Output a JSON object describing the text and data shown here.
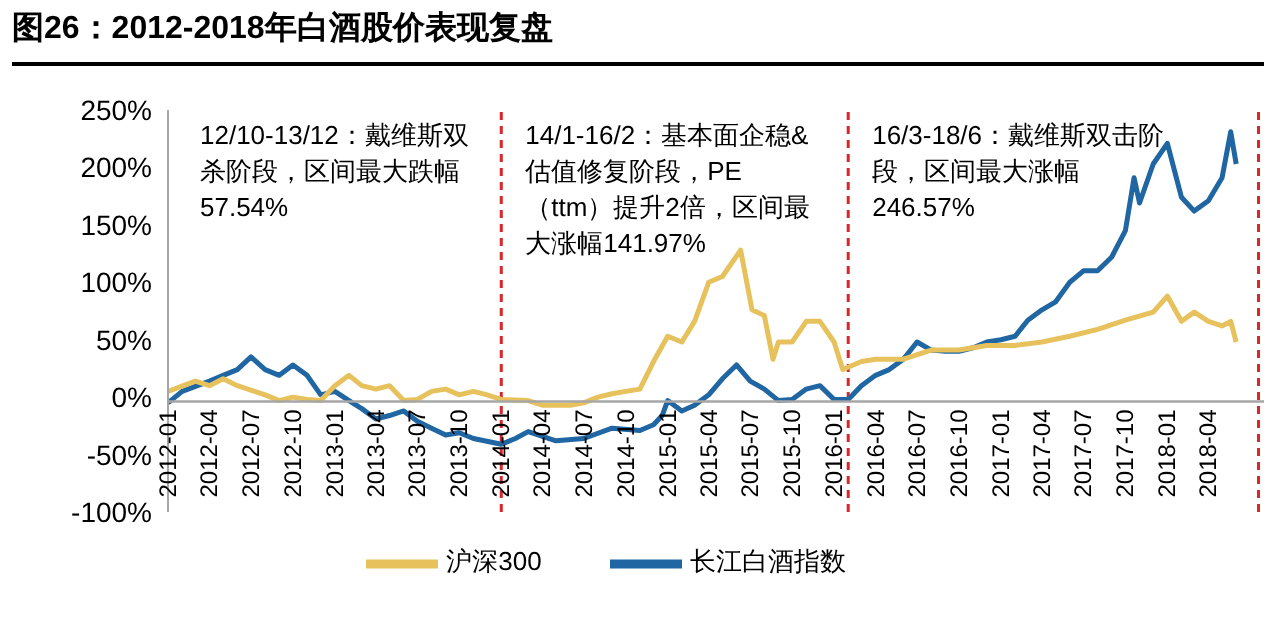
{
  "chart_data": {
    "type": "line",
    "title": "图26：2012-2018年白酒股价表现复盘",
    "annotations": [
      "12/10-13/12：戴维斯双杀阶段，区间最大跌幅57.54%",
      "14/1-16/2：基本面企稳&估值修复阶段，PE（ttm）提升2倍，区间最大涨幅141.97%",
      "16/3-18/6：戴维斯双击阶段，区间最大涨幅246.57%"
    ],
    "series": [
      {
        "name": "长江白酒指数",
        "color": "#1f66a3",
        "x": [
          "2012-01-01",
          "2012-02-01",
          "2012-04-01",
          "2012-05-01",
          "2012-06-01",
          "2012-07-01",
          "2012-08-01",
          "2012-09-01",
          "2012-10-01",
          "2012-11-01",
          "2012-12-01",
          "2013-01-01",
          "2013-02-01",
          "2013-03-01",
          "2013-04-01",
          "2013-05-01",
          "2013-06-01",
          "2013-07-01",
          "2013-08-01",
          "2013-09-01",
          "2013-10-01",
          "2013-11-01",
          "2014-01-01",
          "2014-02-01",
          "2014-03-01",
          "2014-05-01",
          "2014-07-01",
          "2014-09-01",
          "2014-11-01",
          "2014-12-01",
          "2014-12-20",
          "2015-01-01",
          "2015-02-01",
          "2015-03-01",
          "2015-04-01",
          "2015-05-01",
          "2015-06-01",
          "2015-07-01",
          "2015-08-01",
          "2015-09-01",
          "2015-10-01",
          "2015-11-01",
          "2015-12-01",
          "2016-01-01",
          "2016-02-01",
          "2016-03-01",
          "2016-04-01",
          "2016-05-01",
          "2016-06-01",
          "2016-07-01",
          "2016-08-01",
          "2016-09-01",
          "2016-10-01",
          "2016-11-01",
          "2016-12-01",
          "2017-01-01",
          "2017-02-01",
          "2017-03-01",
          "2017-04-01",
          "2017-05-01",
          "2017-06-01",
          "2017-07-01",
          "2017-08-01",
          "2017-09-01",
          "2017-10-01",
          "2017-10-20",
          "2017-11-01",
          "2017-12-01",
          "2018-01-01",
          "2018-02-01",
          "2018-03-01",
          "2018-04-01",
          "2018-05-01",
          "2018-05-20",
          "2018-06-01"
        ],
        "values": [
          -5,
          5,
          14,
          19,
          24,
          35,
          24,
          19,
          28,
          19,
          2,
          5,
          -3,
          -10,
          -19,
          -16,
          -12,
          -21,
          -27,
          -33,
          -31,
          -36,
          -41,
          -36,
          -30,
          -38,
          -36,
          -27,
          -29,
          -24,
          -16,
          -3,
          -12,
          -7,
          2,
          16,
          28,
          14,
          7,
          -3,
          -2,
          7,
          10,
          -2,
          -2,
          10,
          19,
          24,
          33,
          48,
          41,
          40,
          40,
          43,
          48,
          50,
          53,
          67,
          76,
          83,
          100,
          110,
          110,
          122,
          145,
          191,
          169,
          203,
          221,
          174,
          162,
          171,
          191,
          231,
          203
        ]
      },
      {
        "name": "沪深300",
        "color": "#e6c15c",
        "x": [
          "2012-01-01",
          "2012-03-01",
          "2012-04-01",
          "2012-05-01",
          "2012-06-01",
          "2012-08-01",
          "2012-09-01",
          "2012-10-01",
          "2012-11-01",
          "2012-12-01",
          "2013-01-01",
          "2013-02-01",
          "2013-03-01",
          "2013-04-01",
          "2013-05-01",
          "2013-06-01",
          "2013-07-01",
          "2013-08-01",
          "2013-09-01",
          "2013-10-01",
          "2013-11-01",
          "2013-12-01",
          "2014-01-01",
          "2014-03-01",
          "2014-04-01",
          "2014-06-01",
          "2014-07-01",
          "2014-08-01",
          "2014-09-01",
          "2014-10-01",
          "2014-11-01",
          "2014-12-01",
          "2015-01-01",
          "2015-02-01",
          "2015-03-01",
          "2015-04-01",
          "2015-05-01",
          "2015-06-10",
          "2015-07-05",
          "2015-08-01",
          "2015-08-20",
          "2015-09-01",
          "2015-10-01",
          "2015-11-01",
          "2015-12-01",
          "2016-01-01",
          "2016-01-20",
          "2016-03-01",
          "2016-04-01",
          "2016-06-01",
          "2016-08-01",
          "2016-10-01",
          "2016-12-01",
          "2017-02-01",
          "2017-04-01",
          "2017-06-01",
          "2017-08-01",
          "2017-10-01",
          "2017-12-01",
          "2018-01-01",
          "2018-02-01",
          "2018-03-01",
          "2018-04-01",
          "2018-05-01",
          "2018-05-20",
          "2018-06-01"
        ],
        "values": [
          5,
          14,
          10,
          16,
          10,
          2,
          -3,
          0,
          -2,
          -3,
          10,
          19,
          10,
          7,
          10,
          -3,
          -2,
          5,
          7,
          2,
          5,
          2,
          -2,
          -3,
          -7,
          -7,
          -5,
          0,
          3,
          5,
          7,
          31,
          53,
          48,
          66,
          100,
          105,
          128,
          76,
          71,
          33,
          48,
          48,
          66,
          66,
          48,
          24,
          31,
          33,
          33,
          41,
          41,
          45,
          45,
          48,
          53,
          59,
          67,
          74,
          88,
          66,
          74,
          66,
          62,
          66,
          48
        ]
      }
    ],
    "xlim": [
      "2012-01-01",
      "2018-08-01"
    ],
    "xticks": [
      "2012-01",
      "2012-04",
      "2012-07",
      "2012-10",
      "2013-01",
      "2013-04",
      "2013-07",
      "2013-10",
      "2014-01",
      "2014-04",
      "2014-07",
      "2014-10",
      "2015-01",
      "2015-04",
      "2015-07",
      "2015-10",
      "2016-01",
      "2016-04",
      "2016-07",
      "2016-10",
      "2017-01",
      "2017-04",
      "2017-07",
      "2017-10",
      "2018-01",
      "2018-04"
    ],
    "ylim": [
      -100,
      250
    ],
    "yticks": [
      {
        "value": -100,
        "label": "-100%"
      },
      {
        "value": -50,
        "label": "-50%"
      },
      {
        "value": 0,
        "label": "0%"
      },
      {
        "value": 50,
        "label": "50%"
      },
      {
        "value": 100,
        "label": "100%"
      },
      {
        "value": 150,
        "label": "150%"
      },
      {
        "value": 200,
        "label": "200%"
      },
      {
        "value": 250,
        "label": "250%"
      }
    ],
    "ref_lines": [
      {
        "axis": "x",
        "value": "2014-01-01",
        "color": "#d9262a",
        "line_style": "dashed"
      },
      {
        "axis": "x",
        "value": "2016-02-01",
        "color": "#d9262a",
        "line_style": "dashed"
      },
      {
        "axis": "x",
        "value": "2018-07-20",
        "color": "#d9262a",
        "line_style": "dashed"
      }
    ],
    "grid": false,
    "legend": "bottom",
    "marker": "none",
    "line_style": "solid"
  }
}
